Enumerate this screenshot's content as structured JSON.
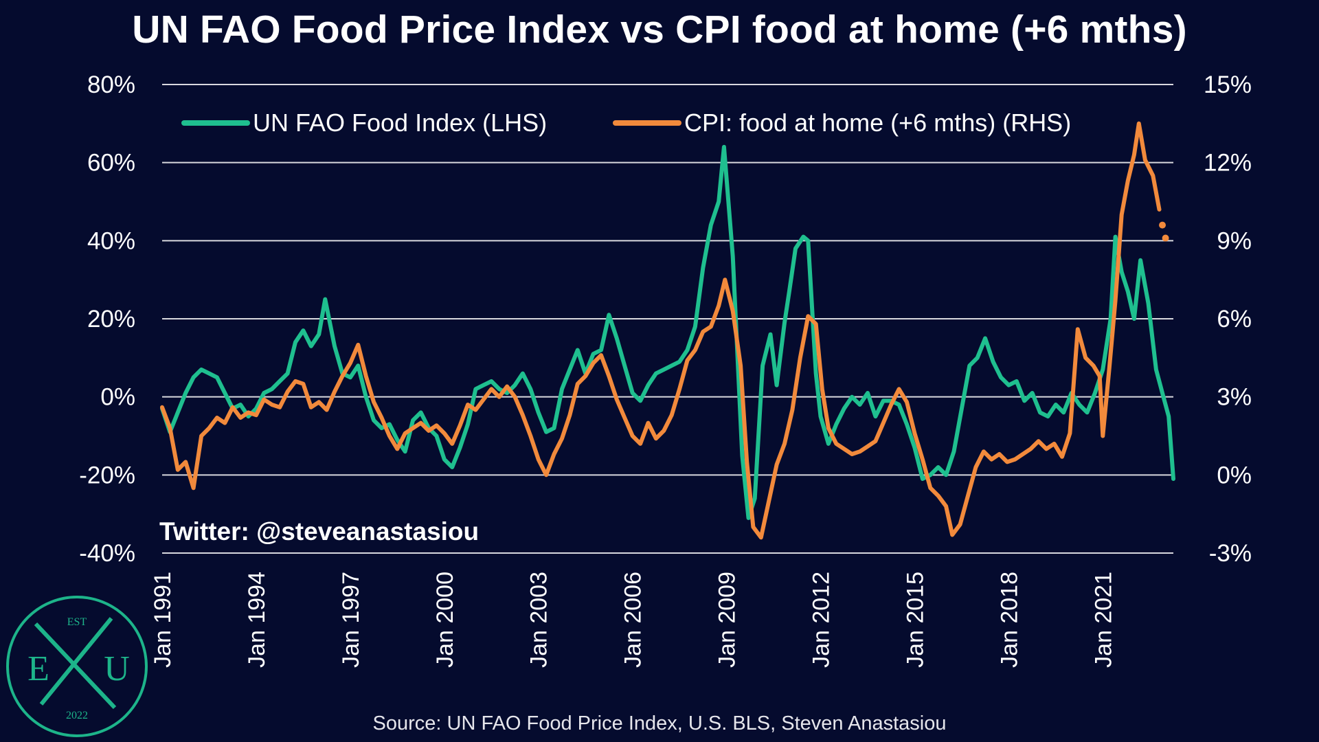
{
  "title": "UN FAO Food Price Index vs CPI food at home (+6 mths)",
  "watermark": "Twitter: @steveanastasiou",
  "source": "Source: UN FAO Food Price Index, U.S. BLS, Steven Anastasiou",
  "logo": {
    "top": "EST",
    "left": "E",
    "right": "U",
    "bottom": "2022",
    "color": "#1db48a"
  },
  "colors": {
    "fao": "#1fbf8f",
    "cpi": "#f28a3c",
    "grid": "#d9d9df",
    "background": "#050b2e"
  },
  "chart_data": {
    "type": "line",
    "xlim": [
      1991.0,
      2023.25
    ],
    "x_ticks": [
      {
        "x": 1991,
        "label": "Jan 1991"
      },
      {
        "x": 1994,
        "label": "Jan 1994"
      },
      {
        "x": 1997,
        "label": "Jan 1997"
      },
      {
        "x": 2000,
        "label": "Jan 2000"
      },
      {
        "x": 2003,
        "label": "Jan 2003"
      },
      {
        "x": 2006,
        "label": "Jan 2006"
      },
      {
        "x": 2009,
        "label": "Jan 2009"
      },
      {
        "x": 2012,
        "label": "Jan 2012"
      },
      {
        "x": 2015,
        "label": "Jan 2015"
      },
      {
        "x": 2018,
        "label": "Jan 2018"
      },
      {
        "x": 2021,
        "label": "Jan 2021"
      }
    ],
    "y_left": {
      "lim": [
        -40,
        80
      ],
      "ticks": [
        80,
        60,
        40,
        20,
        0,
        -20,
        -40
      ],
      "labels": [
        "80%",
        "60%",
        "40%",
        "20%",
        "0%",
        "-20%",
        "-40%"
      ]
    },
    "y_right": {
      "lim": [
        -3,
        15
      ],
      "ticks": [
        15,
        12,
        9,
        6,
        3,
        0,
        -3
      ],
      "labels": [
        "15%",
        "12%",
        "9%",
        "6%",
        "3%",
        "0%",
        "-3%"
      ]
    },
    "legend_position": "top",
    "series": [
      {
        "name": "UN FAO Food Index (LHS)",
        "axis": "left",
        "color": "#1fbf8f",
        "points": [
          [
            1991.0,
            -3
          ],
          [
            1991.25,
            -9
          ],
          [
            1991.5,
            -4
          ],
          [
            1991.75,
            1
          ],
          [
            1992.0,
            5
          ],
          [
            1992.25,
            7
          ],
          [
            1992.5,
            6
          ],
          [
            1992.75,
            5
          ],
          [
            1993.0,
            1
          ],
          [
            1993.25,
            -3
          ],
          [
            1993.5,
            -2
          ],
          [
            1993.75,
            -5
          ],
          [
            1994.0,
            -3
          ],
          [
            1994.25,
            1
          ],
          [
            1994.5,
            2
          ],
          [
            1994.75,
            4
          ],
          [
            1995.0,
            6
          ],
          [
            1995.25,
            14
          ],
          [
            1995.5,
            17
          ],
          [
            1995.75,
            13
          ],
          [
            1996.0,
            16
          ],
          [
            1996.2,
            25
          ],
          [
            1996.5,
            13
          ],
          [
            1996.75,
            6
          ],
          [
            1997.0,
            5
          ],
          [
            1997.25,
            8
          ],
          [
            1997.5,
            0
          ],
          [
            1997.75,
            -6
          ],
          [
            1998.0,
            -8
          ],
          [
            1998.25,
            -7
          ],
          [
            1998.5,
            -11
          ],
          [
            1998.75,
            -14
          ],
          [
            1999.0,
            -6
          ],
          [
            1999.25,
            -4
          ],
          [
            1999.5,
            -8
          ],
          [
            1999.75,
            -10
          ],
          [
            2000.0,
            -16
          ],
          [
            2000.25,
            -18
          ],
          [
            2000.5,
            -13
          ],
          [
            2000.75,
            -7
          ],
          [
            2001.0,
            2
          ],
          [
            2001.25,
            3
          ],
          [
            2001.5,
            4
          ],
          [
            2001.75,
            2
          ],
          [
            2002.0,
            1
          ],
          [
            2002.25,
            3
          ],
          [
            2002.5,
            6
          ],
          [
            2002.75,
            2
          ],
          [
            2003.0,
            -4
          ],
          [
            2003.25,
            -9
          ],
          [
            2003.5,
            -8
          ],
          [
            2003.75,
            2
          ],
          [
            2004.0,
            7
          ],
          [
            2004.25,
            12
          ],
          [
            2004.5,
            6
          ],
          [
            2004.75,
            11
          ],
          [
            2005.0,
            12
          ],
          [
            2005.25,
            21
          ],
          [
            2005.5,
            15
          ],
          [
            2005.75,
            8
          ],
          [
            2006.0,
            1
          ],
          [
            2006.25,
            -1
          ],
          [
            2006.5,
            3
          ],
          [
            2006.75,
            6
          ],
          [
            2007.0,
            7
          ],
          [
            2007.25,
            8
          ],
          [
            2007.5,
            9
          ],
          [
            2007.75,
            12
          ],
          [
            2008.0,
            18
          ],
          [
            2008.25,
            33
          ],
          [
            2008.5,
            44
          ],
          [
            2008.75,
            50
          ],
          [
            2008.92,
            64
          ],
          [
            2009.2,
            36
          ],
          [
            2009.5,
            -15
          ],
          [
            2009.7,
            -31
          ],
          [
            2009.9,
            -26
          ],
          [
            2010.15,
            8
          ],
          [
            2010.4,
            16
          ],
          [
            2010.6,
            3
          ],
          [
            2010.85,
            19
          ],
          [
            2011.0,
            27
          ],
          [
            2011.2,
            38
          ],
          [
            2011.45,
            41
          ],
          [
            2011.6,
            40
          ],
          [
            2011.85,
            6
          ],
          [
            2012.0,
            -5
          ],
          [
            2012.25,
            -12
          ],
          [
            2012.5,
            -7
          ],
          [
            2012.75,
            -3
          ],
          [
            2013.0,
            0
          ],
          [
            2013.25,
            -2
          ],
          [
            2013.5,
            1
          ],
          [
            2013.75,
            -5
          ],
          [
            2014.0,
            -1
          ],
          [
            2014.25,
            -1
          ],
          [
            2014.5,
            -2
          ],
          [
            2014.75,
            -7
          ],
          [
            2015.0,
            -13
          ],
          [
            2015.25,
            -21
          ],
          [
            2015.5,
            -20
          ],
          [
            2015.75,
            -18
          ],
          [
            2016.0,
            -20
          ],
          [
            2016.25,
            -14
          ],
          [
            2016.5,
            -3
          ],
          [
            2016.75,
            8
          ],
          [
            2017.0,
            10
          ],
          [
            2017.25,
            15
          ],
          [
            2017.5,
            9
          ],
          [
            2017.75,
            5
          ],
          [
            2018.0,
            3
          ],
          [
            2018.25,
            4
          ],
          [
            2018.5,
            -1
          ],
          [
            2018.75,
            1
          ],
          [
            2019.0,
            -4
          ],
          [
            2019.25,
            -5
          ],
          [
            2019.5,
            -2
          ],
          [
            2019.75,
            -4
          ],
          [
            2020.0,
            1
          ],
          [
            2020.25,
            -2
          ],
          [
            2020.5,
            -4
          ],
          [
            2020.75,
            1
          ],
          [
            2021.0,
            7
          ],
          [
            2021.25,
            20
          ],
          [
            2021.4,
            41
          ],
          [
            2021.6,
            32
          ],
          [
            2021.8,
            27
          ],
          [
            2022.0,
            20
          ],
          [
            2022.2,
            35
          ],
          [
            2022.45,
            24
          ],
          [
            2022.7,
            7
          ],
          [
            2022.9,
            1
          ],
          [
            2023.1,
            -5
          ],
          [
            2023.25,
            -21
          ]
        ]
      },
      {
        "name": "CPI: food at home (+6 mths) (RHS)",
        "axis": "right",
        "color": "#f28a3c",
        "points": [
          [
            1991.0,
            2.6
          ],
          [
            1991.25,
            1.8
          ],
          [
            1991.5,
            0.2
          ],
          [
            1991.75,
            0.5
          ],
          [
            1992.0,
            -0.5
          ],
          [
            1992.25,
            1.5
          ],
          [
            1992.5,
            1.8
          ],
          [
            1992.75,
            2.2
          ],
          [
            1993.0,
            2.0
          ],
          [
            1993.25,
            2.6
          ],
          [
            1993.5,
            2.2
          ],
          [
            1993.75,
            2.4
          ],
          [
            1994.0,
            2.3
          ],
          [
            1994.25,
            2.9
          ],
          [
            1994.5,
            2.7
          ],
          [
            1994.75,
            2.6
          ],
          [
            1995.0,
            3.2
          ],
          [
            1995.25,
            3.6
          ],
          [
            1995.5,
            3.5
          ],
          [
            1995.75,
            2.6
          ],
          [
            1996.0,
            2.8
          ],
          [
            1996.25,
            2.5
          ],
          [
            1996.5,
            3.2
          ],
          [
            1996.75,
            3.8
          ],
          [
            1997.0,
            4.3
          ],
          [
            1997.25,
            5.0
          ],
          [
            1997.5,
            3.8
          ],
          [
            1997.75,
            2.8
          ],
          [
            1998.0,
            2.2
          ],
          [
            1998.25,
            1.5
          ],
          [
            1998.5,
            1.0
          ],
          [
            1998.75,
            1.6
          ],
          [
            1999.0,
            1.8
          ],
          [
            1999.25,
            2.0
          ],
          [
            1999.5,
            1.7
          ],
          [
            1999.75,
            1.9
          ],
          [
            2000.0,
            1.6
          ],
          [
            2000.25,
            1.2
          ],
          [
            2000.5,
            1.9
          ],
          [
            2000.75,
            2.7
          ],
          [
            2001.0,
            2.5
          ],
          [
            2001.25,
            2.9
          ],
          [
            2001.5,
            3.3
          ],
          [
            2001.75,
            3.0
          ],
          [
            2002.0,
            3.4
          ],
          [
            2002.25,
            3.0
          ],
          [
            2002.5,
            2.3
          ],
          [
            2002.75,
            1.5
          ],
          [
            2003.0,
            0.6
          ],
          [
            2003.25,
            0.0
          ],
          [
            2003.5,
            0.8
          ],
          [
            2003.75,
            1.4
          ],
          [
            2004.0,
            2.3
          ],
          [
            2004.25,
            3.5
          ],
          [
            2004.5,
            3.8
          ],
          [
            2004.75,
            4.3
          ],
          [
            2005.0,
            4.6
          ],
          [
            2005.25,
            3.8
          ],
          [
            2005.5,
            2.9
          ],
          [
            2005.75,
            2.2
          ],
          [
            2006.0,
            1.5
          ],
          [
            2006.25,
            1.2
          ],
          [
            2006.5,
            2.0
          ],
          [
            2006.75,
            1.4
          ],
          [
            2007.0,
            1.7
          ],
          [
            2007.25,
            2.3
          ],
          [
            2007.5,
            3.3
          ],
          [
            2007.75,
            4.4
          ],
          [
            2008.0,
            4.8
          ],
          [
            2008.25,
            5.5
          ],
          [
            2008.5,
            5.7
          ],
          [
            2008.75,
            6.5
          ],
          [
            2008.95,
            7.5
          ],
          [
            2009.2,
            6.3
          ],
          [
            2009.45,
            4.2
          ],
          [
            2009.65,
            0.5
          ],
          [
            2009.85,
            -2.0
          ],
          [
            2010.1,
            -2.4
          ],
          [
            2010.35,
            -1.0
          ],
          [
            2010.6,
            0.4
          ],
          [
            2010.85,
            1.2
          ],
          [
            2011.1,
            2.5
          ],
          [
            2011.35,
            4.5
          ],
          [
            2011.6,
            6.1
          ],
          [
            2011.85,
            5.8
          ],
          [
            2012.05,
            3.3
          ],
          [
            2012.25,
            1.8
          ],
          [
            2012.5,
            1.2
          ],
          [
            2012.75,
            1.0
          ],
          [
            2013.0,
            0.8
          ],
          [
            2013.25,
            0.9
          ],
          [
            2013.5,
            1.1
          ],
          [
            2013.75,
            1.3
          ],
          [
            2014.0,
            2.0
          ],
          [
            2014.25,
            2.7
          ],
          [
            2014.5,
            3.3
          ],
          [
            2014.75,
            2.8
          ],
          [
            2015.0,
            1.6
          ],
          [
            2015.25,
            0.6
          ],
          [
            2015.5,
            -0.5
          ],
          [
            2015.75,
            -0.8
          ],
          [
            2016.0,
            -1.2
          ],
          [
            2016.2,
            -2.3
          ],
          [
            2016.45,
            -1.9
          ],
          [
            2016.7,
            -0.8
          ],
          [
            2016.95,
            0.3
          ],
          [
            2017.2,
            0.9
          ],
          [
            2017.45,
            0.6
          ],
          [
            2017.7,
            0.8
          ],
          [
            2017.95,
            0.5
          ],
          [
            2018.2,
            0.6
          ],
          [
            2018.45,
            0.8
          ],
          [
            2018.7,
            1.0
          ],
          [
            2018.95,
            1.3
          ],
          [
            2019.2,
            1.0
          ],
          [
            2019.45,
            1.2
          ],
          [
            2019.7,
            0.7
          ],
          [
            2019.95,
            1.6
          ],
          [
            2020.2,
            5.6
          ],
          [
            2020.45,
            4.5
          ],
          [
            2020.7,
            4.2
          ],
          [
            2020.9,
            3.8
          ],
          [
            2021.0,
            1.5
          ],
          [
            2021.2,
            4.0
          ],
          [
            2021.4,
            6.7
          ],
          [
            2021.6,
            10.0
          ],
          [
            2021.8,
            11.3
          ],
          [
            2022.0,
            12.3
          ],
          [
            2022.15,
            13.5
          ],
          [
            2022.35,
            12.1
          ],
          [
            2022.6,
            11.5
          ],
          [
            2022.8,
            10.2
          ]
        ],
        "dotted_tail": [
          [
            2022.9,
            9.6
          ],
          [
            2023.0,
            9.1
          ]
        ]
      }
    ]
  }
}
